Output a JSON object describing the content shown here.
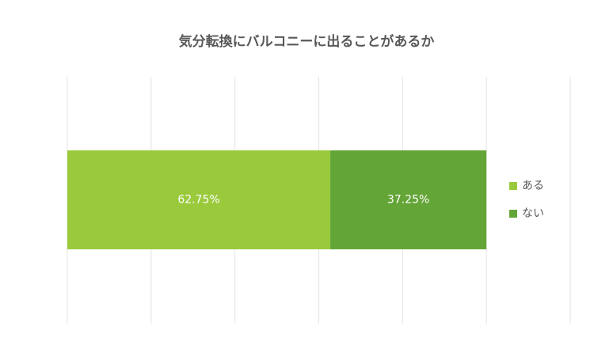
{
  "chart_data": {
    "type": "stacked-bar-horizontal",
    "title": "気分転換にバルコニーに出ることがあるか",
    "series": [
      {
        "name": "ある",
        "color": "#9aca3c",
        "values": [
          62.75
        ],
        "value_labels": [
          "62.75%"
        ]
      },
      {
        "name": "ない",
        "color": "#63a537",
        "values": [
          37.25
        ],
        "value_labels": [
          "37.25%"
        ]
      }
    ],
    "xlim": [
      0,
      120
    ],
    "xticks": [
      0,
      20,
      40,
      60,
      80,
      100,
      120
    ],
    "grid": true,
    "legend": "right"
  }
}
